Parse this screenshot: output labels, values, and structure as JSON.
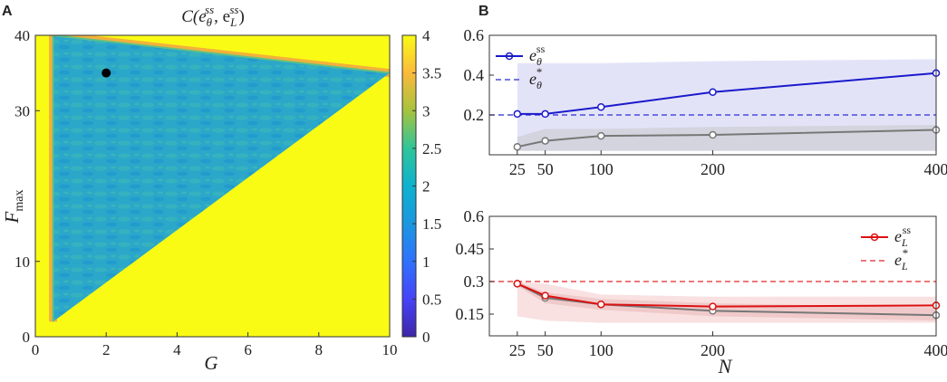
{
  "panels": {
    "a_label": "A",
    "b_label": "B"
  },
  "chart_data": [
    {
      "type": "heatmap",
      "panel": "A",
      "title": "C(e_θ^ss, e_L^ss)",
      "title_parts": {
        "base": "C(e",
        "sub1": "θ",
        "sup1": "ss",
        "mid": ", e",
        "sub2": "L",
        "sup2": "ss",
        "end": ")"
      },
      "xlabel": "G",
      "ylabel": "F",
      "ylabel_sub": "max",
      "xlim": [
        0,
        10
      ],
      "ylim": [
        0,
        40
      ],
      "xticks": [
        0,
        2,
        4,
        6,
        8,
        10
      ],
      "yticks": [
        0,
        10,
        30,
        40
      ],
      "colorbar": {
        "min": 0,
        "max": 4,
        "ticks": [
          "0",
          "0.5",
          "1",
          "1.5",
          "2",
          "2.5",
          "3",
          "3.5",
          "4"
        ]
      },
      "boundary": {
        "description": "diagonal",
        "points": [
          [
            0.5,
            2
          ],
          [
            0.5,
            40
          ],
          [
            10,
            35
          ],
          [
            10,
            0
          ]
        ]
      },
      "marker": {
        "x": 2.0,
        "y": 35.0
      },
      "region_values": {
        "upper_triangle": 2.0,
        "lower_region": 4.0
      }
    },
    {
      "type": "line",
      "panel": "B-top",
      "xlim": [
        0,
        400
      ],
      "ylim": [
        0,
        0.6
      ],
      "xticks": [
        25,
        50,
        100,
        200,
        400
      ],
      "yticks": [
        0.2,
        0.4,
        0.6
      ],
      "ytick_labels": [
        "0.2",
        "0.4",
        "0.6"
      ],
      "series": [
        {
          "name": "e_θ^ss",
          "label_base": "e",
          "label_sub": "θ",
          "label_sup": "ss",
          "color": "#1a1acc",
          "x": [
            25,
            50,
            100,
            200,
            400
          ],
          "y": [
            0.205,
            0.205,
            0.24,
            0.315,
            0.41
          ],
          "band_lower": [
            0.02,
            0.02,
            0.02,
            0.02,
            0.02
          ],
          "band_upper": [
            0.46,
            0.46,
            0.46,
            0.47,
            0.48
          ]
        },
        {
          "name": "gray",
          "color": "#777777",
          "x": [
            25,
            50,
            100,
            200,
            400
          ],
          "y": [
            0.04,
            0.07,
            0.095,
            0.1,
            0.125
          ],
          "band_lower": [
            0.02,
            0.02,
            0.02,
            0.02,
            0.02
          ],
          "band_upper": [
            0.09,
            0.13,
            0.13,
            0.14,
            0.15
          ]
        }
      ],
      "reference": {
        "name": "e_θ^*",
        "label_base": "e",
        "label_sub": "θ",
        "label_sup": "*",
        "color": "#4a4ad9",
        "value": 0.2
      },
      "legend": "top-left"
    },
    {
      "type": "line",
      "panel": "B-bottom",
      "xlim": [
        0,
        400
      ],
      "ylim": [
        0.05,
        0.6
      ],
      "xlabel": "N",
      "xticks": [
        25,
        50,
        100,
        200,
        400
      ],
      "yticks": [
        0.15,
        0.3,
        0.45,
        0.6
      ],
      "ytick_labels": [
        "0.15",
        "0.3",
        "0.45",
        "0.6"
      ],
      "series": [
        {
          "name": "e_L^ss",
          "label_base": "e",
          "label_sub": "L",
          "label_sup": "ss",
          "color": "#dd1111",
          "x": [
            25,
            50,
            100,
            200,
            400
          ],
          "y": [
            0.29,
            0.235,
            0.195,
            0.185,
            0.19
          ],
          "band_lower": [
            0.14,
            0.12,
            0.11,
            0.11,
            0.11
          ],
          "band_upper": [
            0.3,
            0.29,
            0.24,
            0.23,
            0.23
          ]
        },
        {
          "name": "gray",
          "color": "#777777",
          "x": [
            25,
            50,
            100,
            200,
            400
          ],
          "y": [
            0.29,
            0.225,
            0.195,
            0.165,
            0.145
          ],
          "band_lower": [
            0.28,
            0.2,
            0.17,
            0.14,
            0.12
          ],
          "band_upper": [
            0.3,
            0.25,
            0.22,
            0.2,
            0.18
          ]
        }
      ],
      "reference": {
        "name": "e_L^*",
        "label_base": "e",
        "label_sub": "L",
        "label_sup": "*",
        "color": "#e84a4a",
        "value": 0.3
      },
      "legend": "top-right"
    }
  ]
}
